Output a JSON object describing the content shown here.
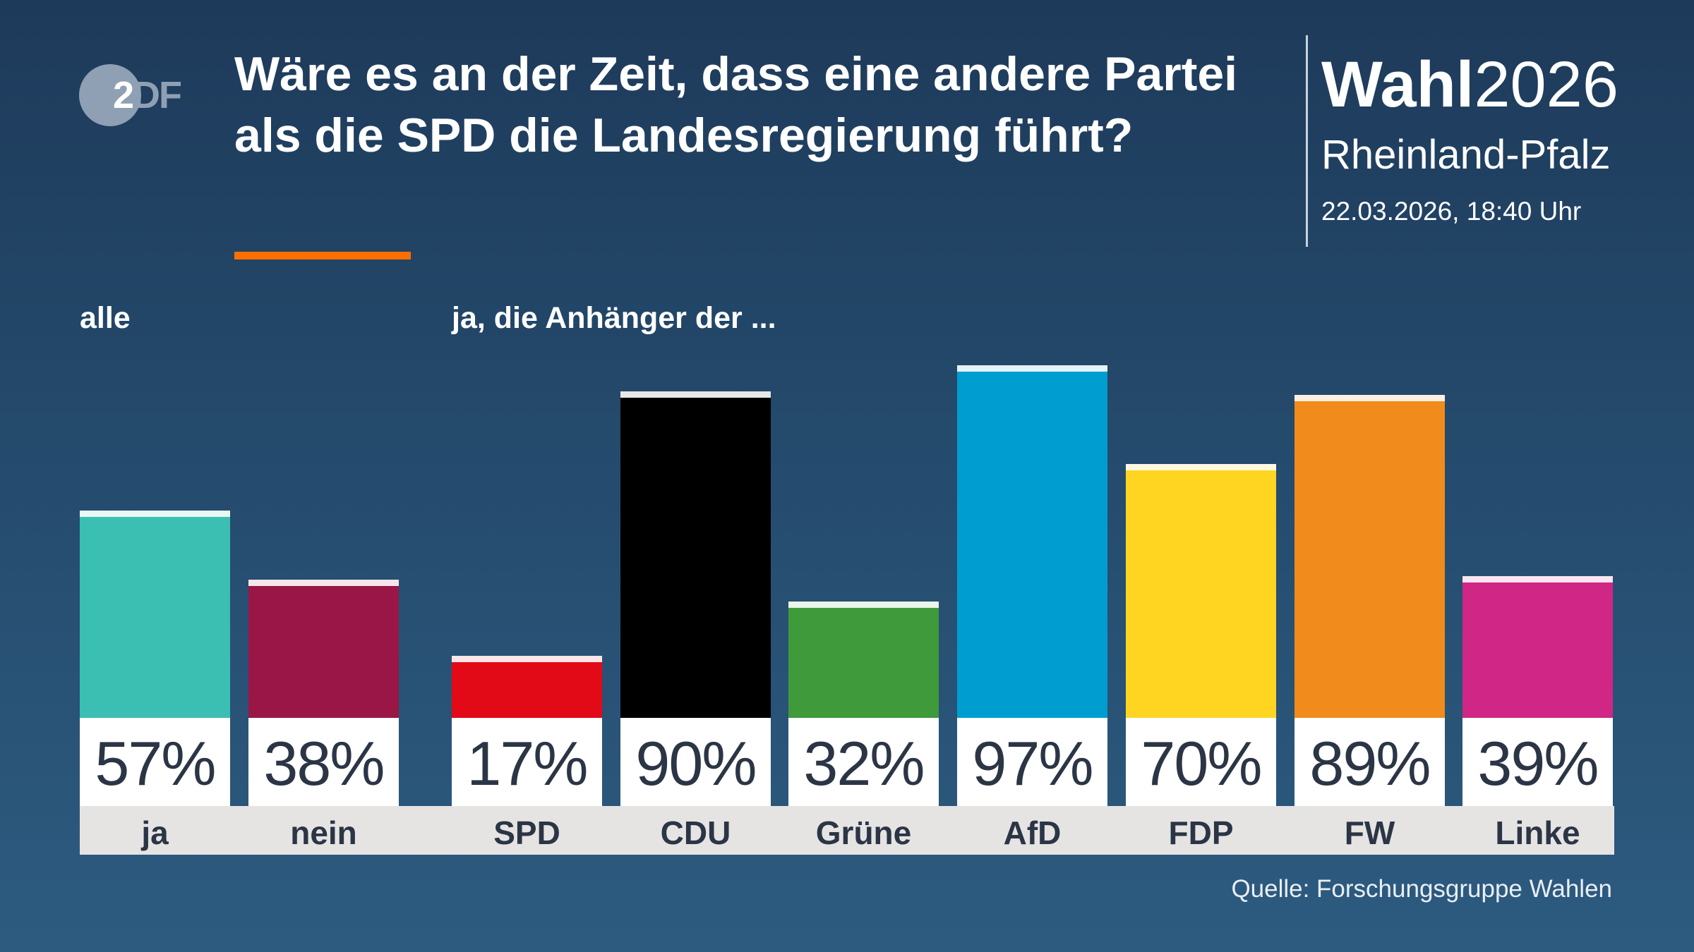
{
  "header": {
    "logo_text": "ZDF",
    "title": "Wäre es an der Zeit, dass eine andere Partei als die SPD die Landesregierung führt?",
    "brand_bold": "Wahl",
    "brand_year": "2026",
    "region": "Rheinland-Pfalz",
    "date": "22.03.2026, 18:40 Uhr",
    "accent_color": "#ff6f00"
  },
  "chart_data": {
    "type": "bar",
    "groups": [
      {
        "label": "alle",
        "categories": [
          "ja",
          "nein"
        ]
      },
      {
        "label": "ja, die Anhänger der ...",
        "categories": [
          "SPD",
          "CDU",
          "Grüne",
          "AfD",
          "FDP",
          "FW",
          "Linke"
        ]
      }
    ],
    "categories": [
      "ja",
      "nein",
      "SPD",
      "CDU",
      "Grüne",
      "AfD",
      "FDP",
      "FW",
      "Linke"
    ],
    "values": [
      57,
      38,
      17,
      90,
      32,
      97,
      70,
      89,
      39
    ],
    "value_labels": [
      "57%",
      "38%",
      "17%",
      "90%",
      "32%",
      "97%",
      "70%",
      "89%",
      "39%"
    ],
    "colors": [
      "#3bbfb2",
      "#9a1646",
      "#e30a17",
      "#000000",
      "#3f9a3c",
      "#009ed0",
      "#ffd521",
      "#f18b1b",
      "#d02686"
    ],
    "cap_colors": [
      "#eaf7f6",
      "#f6e6ec",
      "#fde6e8",
      "#e8e8e8",
      "#ebf5eb",
      "#e5f4fa",
      "#fff9e2",
      "#fdf0e2",
      "#f9e6f1"
    ],
    "unit": "%",
    "ylim": [
      0,
      100
    ],
    "grid": false
  },
  "footer": {
    "source": "Quelle: Forschungsgruppe Wahlen"
  }
}
